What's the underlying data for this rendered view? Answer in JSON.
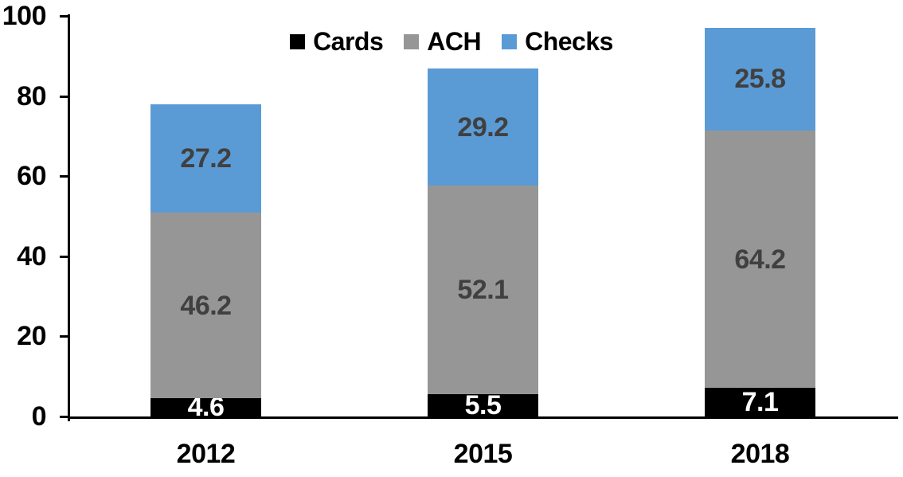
{
  "chart_data": {
    "type": "bar",
    "stacked": true,
    "title": "",
    "xlabel": "",
    "ylabel": "",
    "categories": [
      "2012",
      "2015",
      "2018"
    ],
    "series": [
      {
        "name": "Cards",
        "color": "#000000",
        "label_color": "#FFFFFF",
        "values": [
          4.6,
          5.5,
          7.1
        ]
      },
      {
        "name": "ACH",
        "color": "#969696",
        "label_color": "#404040",
        "values": [
          46.2,
          52.1,
          64.2
        ]
      },
      {
        "name": "Checks",
        "color": "#5B9BD5",
        "label_color": "#404040",
        "values": [
          27.2,
          29.2,
          25.8
        ]
      }
    ],
    "totals": [
      78.0,
      86.8,
      97.1
    ],
    "ylim": [
      0,
      100
    ],
    "yticks": [
      0,
      20,
      40,
      60,
      80,
      100
    ],
    "grid": false,
    "legend": {
      "position": "top-center",
      "entries": [
        "Cards",
        "ACH",
        "Checks"
      ]
    },
    "axis_color": "#000000",
    "background": "#FFFFFF"
  }
}
